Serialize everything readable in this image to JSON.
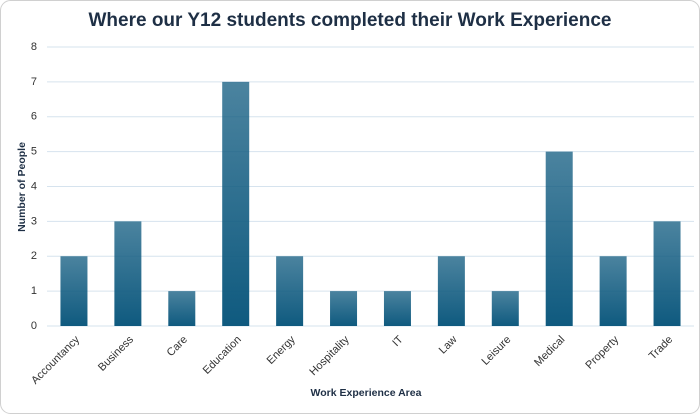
{
  "chart_data": {
    "type": "bar",
    "title": "Where our Y12 students completed their Work Experience",
    "x_label": "Work Experience Area",
    "y_label": "Number of People",
    "categories": [
      "Accountancy",
      "Business",
      "Care",
      "Education",
      "Energy",
      "Hospitality",
      "IT",
      "Law",
      "Leisure",
      "Medical",
      "Property",
      "Trade"
    ],
    "values": [
      2,
      3,
      1,
      7,
      2,
      1,
      1,
      2,
      1,
      5,
      2,
      3
    ],
    "color": "#0f5a7f",
    "ylim": [
      0,
      8
    ],
    "yticks": [
      0,
      1,
      2,
      3,
      4,
      5,
      6,
      7,
      8
    ],
    "grid": true
  }
}
